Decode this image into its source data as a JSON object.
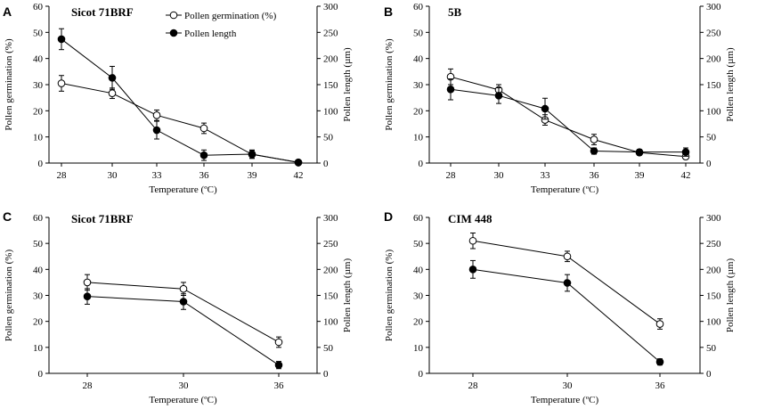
{
  "legend": {
    "germination_label": "Pollen germination (%)",
    "length_label": "Pollen length"
  },
  "colors": {
    "axis": "#000000",
    "germination_fill": "#ffffff",
    "length_fill": "#000000"
  },
  "chart_data": [
    {
      "panel": "A",
      "title": "Sicot 71BRF",
      "type": "line",
      "categories": [
        "28",
        "30",
        "33",
        "36",
        "39",
        "42"
      ],
      "xlabel": "Temperature (ºC)",
      "ylabel_left": "Pollen germination (%)",
      "ylabel_right": "Pollen length (µm)",
      "ylim_left": [
        0,
        60
      ],
      "yticks_left": [
        0,
        10,
        20,
        30,
        40,
        50,
        60
      ],
      "ylim_right": [
        0,
        300
      ],
      "yticks_right": [
        0,
        50,
        100,
        150,
        200,
        250,
        300
      ],
      "series": [
        {
          "name": "Pollen germination (%)",
          "axis": "left",
          "marker": "open",
          "values": [
            30.5,
            26.7,
            18.3,
            13.3,
            3.3,
            0.3
          ],
          "errors": [
            3,
            2,
            2,
            2,
            1.5,
            0.5
          ]
        },
        {
          "name": "Pollen length",
          "axis": "right",
          "marker": "filled",
          "values": [
            237,
            163,
            63,
            15,
            17,
            1
          ],
          "errors": [
            20,
            22,
            17,
            10,
            8,
            2
          ]
        }
      ]
    },
    {
      "panel": "B",
      "title": "5B",
      "type": "line",
      "categories": [
        "28",
        "30",
        "33",
        "36",
        "39",
        "42"
      ],
      "xlabel": "Temperature (ºC)",
      "ylabel_left": "Pollen germination (%)",
      "ylabel_right": "Pollen length (µm)",
      "ylim_left": [
        0,
        60
      ],
      "yticks_left": [
        0,
        10,
        20,
        30,
        40,
        50,
        60
      ],
      "ylim_right": [
        0,
        300
      ],
      "yticks_right": [
        0,
        50,
        100,
        150,
        200,
        250,
        300
      ],
      "series": [
        {
          "name": "Pollen germination (%)",
          "axis": "left",
          "marker": "open",
          "values": [
            33,
            28,
            16.5,
            9,
            4,
            2.5
          ],
          "errors": [
            3,
            2,
            2,
            2,
            1,
            1
          ]
        },
        {
          "name": "Pollen length",
          "axis": "right",
          "marker": "filled",
          "values": [
            141,
            129,
            104,
            23,
            21,
            21
          ],
          "errors": [
            20,
            15,
            20,
            6,
            5,
            8
          ]
        }
      ]
    },
    {
      "panel": "C",
      "title": "Sicot 71BRF",
      "type": "line",
      "categories": [
        "28",
        "30",
        "36"
      ],
      "xlabel": "Temperature (ºC)",
      "ylabel_left": "Pollen germination (%)",
      "ylabel_right": "Pollen length (µm)",
      "ylim_left": [
        0,
        60
      ],
      "yticks_left": [
        0,
        10,
        20,
        30,
        40,
        50,
        60
      ],
      "ylim_right": [
        0,
        300
      ],
      "yticks_right": [
        0,
        50,
        100,
        150,
        200,
        250,
        300
      ],
      "series": [
        {
          "name": "Pollen germination (%)",
          "axis": "left",
          "marker": "open",
          "values": [
            35,
            32.5,
            12
          ],
          "errors": [
            3,
            2.5,
            2
          ]
        },
        {
          "name": "Pollen length",
          "axis": "right",
          "marker": "filled",
          "values": [
            148,
            138,
            16
          ],
          "errors": [
            15,
            15,
            7
          ]
        }
      ]
    },
    {
      "panel": "D",
      "title": "CIM 448",
      "type": "line",
      "categories": [
        "28",
        "30",
        "36"
      ],
      "xlabel": "Temperature (ºC)",
      "ylabel_left": "Pollen germination (%)",
      "ylabel_right": "Pollen length (µm)",
      "ylim_left": [
        0,
        60
      ],
      "yticks_left": [
        0,
        10,
        20,
        30,
        40,
        50,
        60
      ],
      "ylim_right": [
        0,
        300
      ],
      "yticks_right": [
        0,
        50,
        100,
        150,
        200,
        250,
        300
      ],
      "series": [
        {
          "name": "Pollen germination (%)",
          "axis": "left",
          "marker": "open",
          "values": [
            51,
            45,
            19
          ],
          "errors": [
            3,
            2,
            2
          ]
        },
        {
          "name": "Pollen length",
          "axis": "right",
          "marker": "filled",
          "values": [
            200,
            174,
            22
          ],
          "errors": [
            17,
            16,
            6
          ]
        }
      ]
    }
  ]
}
